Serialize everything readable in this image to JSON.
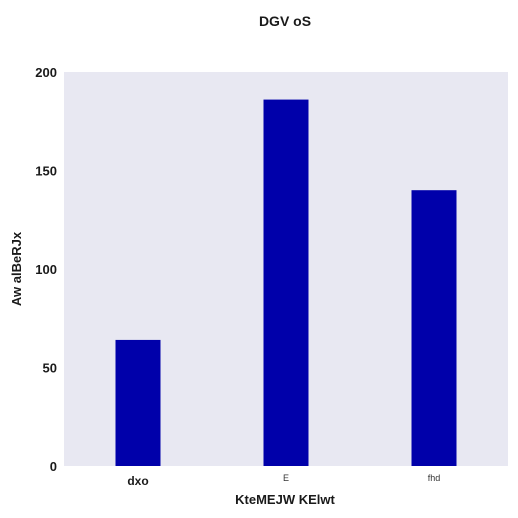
{
  "chart_data": {
    "type": "bar",
    "title": "DGV oS",
    "xlabel": "KteMEJW KElwt",
    "ylabel": "Aw alBeRJx",
    "categories": [
      "dxo",
      "E",
      "fhd"
    ],
    "values": [
      64,
      186,
      140
    ],
    "ylim": [
      0,
      200
    ],
    "yticks": [
      0,
      50,
      100,
      150,
      200
    ],
    "grid": false,
    "colors": {
      "bar": "#0000aa",
      "plot_background": "#e8e8f2"
    }
  }
}
